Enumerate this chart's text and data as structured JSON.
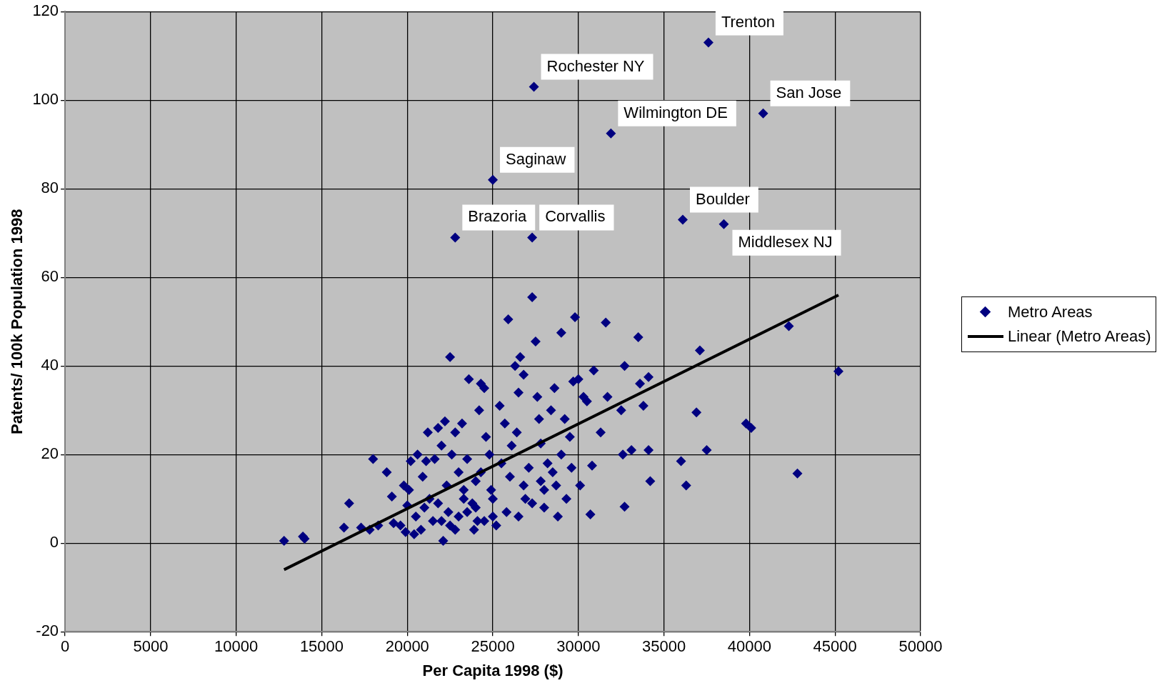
{
  "chart_data": {
    "type": "scatter",
    "xlabel": "Per Capita 1998 ($)",
    "ylabel": "Patents/ 100k Population 1998",
    "xlim": [
      0,
      50000
    ],
    "xticks": [
      0,
      5000,
      10000,
      15000,
      20000,
      25000,
      30000,
      35000,
      40000,
      45000,
      50000
    ],
    "ylim": [
      -20,
      120
    ],
    "yticks": [
      -20,
      0,
      20,
      40,
      60,
      80,
      100,
      120
    ],
    "grid": true,
    "legend": "right",
    "marker": "diamond",
    "series": [
      {
        "name": "Metro Areas",
        "color": "#000080",
        "x": [
          37600,
          27400,
          40800,
          31900,
          25000,
          36100,
          38500,
          22800,
          27300,
          12800,
          13900,
          14000,
          16300,
          16600,
          17300,
          17800,
          18000,
          18300,
          18800,
          19100,
          19200,
          19600,
          19800,
          19900,
          20000,
          20100,
          20200,
          20400,
          20500,
          20600,
          20800,
          20900,
          21000,
          21100,
          21200,
          21300,
          21500,
          21600,
          21800,
          22000,
          22100,
          22200,
          22300,
          22400,
          22500,
          22600,
          22800,
          23000,
          23200,
          23300,
          23500,
          23600,
          23800,
          24000,
          24100,
          24200,
          24300,
          24500,
          24600,
          24800,
          24900,
          25000,
          25200,
          25400,
          25500,
          25700,
          25900,
          26000,
          26100,
          26300,
          26400,
          26500,
          26600,
          26800,
          26900,
          27100,
          27300,
          27500,
          27600,
          27700,
          27800,
          28000,
          28200,
          28400,
          28600,
          28700,
          28800,
          29000,
          29200,
          29300,
          29500,
          29600,
          29700,
          29800,
          30000,
          30100,
          30300,
          30500,
          30700,
          30800,
          30900,
          31300,
          31600,
          31700,
          32500,
          32600,
          32700,
          32700,
          33100,
          33500,
          33600,
          33800,
          34100,
          34100,
          34200,
          36000,
          36300,
          36900,
          37100,
          37500,
          39800,
          40100,
          42300,
          42800,
          45200,
          22000,
          22500,
          23000,
          23500,
          24000,
          24500,
          22800,
          21800,
          23300,
          25000,
          25800,
          26500,
          27300,
          28000,
          28500,
          29000,
          27800,
          26800,
          24300,
          23900
        ],
        "values": [
          113,
          103,
          97,
          92.5,
          82,
          73,
          72,
          69,
          69,
          0.5,
          1.5,
          1,
          3.5,
          9,
          3.5,
          3,
          19,
          4,
          16,
          10.5,
          4.5,
          4,
          13,
          2.5,
          8.5,
          12,
          18.5,
          2,
          6,
          20,
          3,
          15,
          8,
          18.5,
          25,
          10,
          5,
          19,
          26,
          22,
          0.5,
          27.5,
          13,
          7,
          42,
          20,
          25,
          16,
          27,
          12,
          19,
          37,
          9,
          14,
          5,
          30,
          36,
          35,
          24,
          20,
          12,
          6,
          4,
          31,
          18,
          27,
          50.5,
          15,
          22,
          40,
          25,
          34,
          42,
          38,
          10,
          17,
          55.5,
          45.5,
          33,
          28,
          22.5,
          8,
          18,
          30,
          35,
          13,
          6,
          47.5,
          28,
          10,
          24,
          17,
          36.5,
          51,
          37,
          13,
          33,
          32,
          6.5,
          17.5,
          39,
          25,
          49.8,
          33,
          30,
          20,
          40,
          8.2,
          21,
          46.5,
          36,
          31,
          21,
          37.5,
          14,
          18.5,
          13,
          29.5,
          43.5,
          21,
          27,
          26,
          49,
          15.7,
          38.8,
          5,
          4,
          6,
          7,
          8,
          5,
          3,
          9,
          10,
          10,
          7,
          6,
          9,
          12,
          16,
          20,
          14,
          13,
          16,
          3
        ]
      },
      {
        "name": "Linear (Metro Areas)",
        "color": "#000000",
        "type": "line",
        "line_style": "solid",
        "marker": "none",
        "x": [
          12800,
          45200
        ],
        "values": [
          -6,
          56
        ]
      }
    ],
    "annotations": [
      {
        "text": "Trenton",
        "x": 37600,
        "y": 113
      },
      {
        "text": "Rochester NY",
        "x": 27400,
        "y": 103
      },
      {
        "text": "San Jose",
        "x": 40800,
        "y": 97
      },
      {
        "text": "Wilmington DE",
        "x": 31900,
        "y": 92.5
      },
      {
        "text": "Saginaw",
        "x": 25000,
        "y": 82
      },
      {
        "text": "Boulder",
        "x": 36100,
        "y": 73
      },
      {
        "text": "Middlesex NJ",
        "x": 38500,
        "y": 72
      },
      {
        "text": "Brazoria",
        "x": 22800,
        "y": 69
      },
      {
        "text": "Corvallis",
        "x": 27300,
        "y": 69
      }
    ]
  }
}
